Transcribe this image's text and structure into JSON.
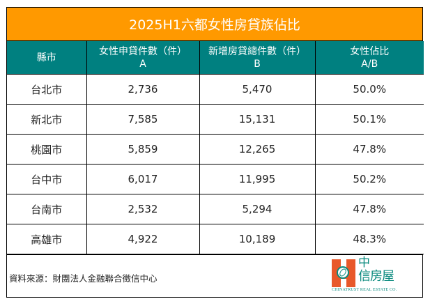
{
  "title": "2025H1六都女性房貸族佔比",
  "colors": {
    "title_bg": "#ff9900",
    "header_bg": "#008080",
    "logo_orange": "#e8582a",
    "logo_teal": "#0a8a7e"
  },
  "table": {
    "headers": [
      {
        "line1": "縣市",
        "line2": ""
      },
      {
        "line1": "女性申貸件數（件）",
        "line2": "A"
      },
      {
        "line1": "新增房貸總件數（件）",
        "line2": "B"
      },
      {
        "line1": "女性佔比",
        "line2": "A/B"
      }
    ],
    "rows": [
      {
        "city": "台北市",
        "female": "2,736",
        "total": "5,470",
        "ratio": "50.0%"
      },
      {
        "city": "新北市",
        "female": "7,585",
        "total": "15,131",
        "ratio": "50.1%"
      },
      {
        "city": "桃園市",
        "female": "5,859",
        "total": "12,265",
        "ratio": "47.8%"
      },
      {
        "city": "台中市",
        "female": "6,017",
        "total": "11,995",
        "ratio": "50.2%"
      },
      {
        "city": "台南市",
        "female": "2,532",
        "total": "5,294",
        "ratio": "47.8%"
      },
      {
        "city": "高雄市",
        "female": "4,922",
        "total": "10,189",
        "ratio": "48.3%"
      }
    ]
  },
  "footer": {
    "source": "資料來源：財團法人金融聯合徵信中心",
    "logo": {
      "zh_line1": "中",
      "zh_line2": "信房屋",
      "en": "CHINATRUST REAL ESTATE CO."
    }
  }
}
